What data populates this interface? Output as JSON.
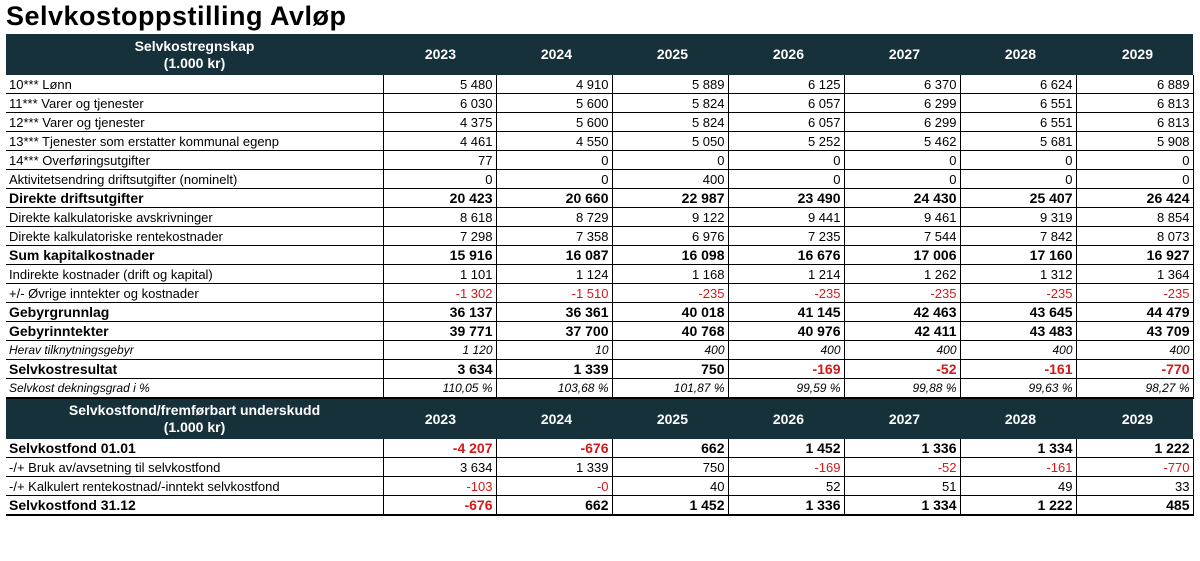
{
  "title": "Selvkostoppstilling Avløp",
  "years": [
    "2023",
    "2024",
    "2025",
    "2026",
    "2027",
    "2028",
    "2029"
  ],
  "section1": {
    "header_line1": "Selvkostregnskap",
    "header_line2": "(1.000 kr)",
    "rows": [
      {
        "label": "10*** Lønn",
        "style": "ind1",
        "values": [
          "5 480",
          "4 910",
          "5 889",
          "6 125",
          "6 370",
          "6 624",
          "6 889"
        ]
      },
      {
        "label": "11*** Varer og tjenester",
        "style": "ind1",
        "values": [
          "6 030",
          "5 600",
          "5 824",
          "6 057",
          "6 299",
          "6 551",
          "6 813"
        ]
      },
      {
        "label": "12*** Varer og tjenester",
        "style": "ind1",
        "values": [
          "4 375",
          "5 600",
          "5 824",
          "6 057",
          "6 299",
          "6 551",
          "6 813"
        ]
      },
      {
        "label": "13*** Tjenester som erstatter kommunal egenp",
        "style": "ind1",
        "values": [
          "4 461",
          "4 550",
          "5 050",
          "5 252",
          "5 462",
          "5 681",
          "5 908"
        ]
      },
      {
        "label": "14*** Overføringsutgifter",
        "style": "ind1",
        "values": [
          "77",
          "0",
          "0",
          "0",
          "0",
          "0",
          "0"
        ]
      },
      {
        "label": "Aktivitetsendring driftsutgifter (nominelt)",
        "style": "ind1",
        "values": [
          "0",
          "0",
          "400",
          "0",
          "0",
          "0",
          "0"
        ]
      },
      {
        "label": "Direkte driftsutgifter",
        "style": "bold",
        "values": [
          "20 423",
          "20 660",
          "22 987",
          "23 490",
          "24 430",
          "25 407",
          "26 424"
        ]
      },
      {
        "label": "Direkte kalkulatoriske avskrivninger",
        "style": "ind1",
        "values": [
          "8 618",
          "8 729",
          "9 122",
          "9 441",
          "9 461",
          "9 319",
          "8 854"
        ]
      },
      {
        "label": "Direkte kalkulatoriske rentekostnader",
        "style": "ind1",
        "values": [
          "7 298",
          "7 358",
          "6 976",
          "7 235",
          "7 544",
          "7 842",
          "8 073"
        ]
      },
      {
        "label": "Sum kapitalkostnader",
        "style": "bold2",
        "values": [
          "15 916",
          "16 087",
          "16 098",
          "16 676",
          "17 006",
          "17 160",
          "16 927"
        ]
      },
      {
        "label": "Indirekte kostnader (drift og kapital)",
        "style": "ind1",
        "values": [
          "1 101",
          "1 124",
          "1 168",
          "1 214",
          "1 262",
          "1 312",
          "1 364"
        ]
      },
      {
        "label": "+/- Øvrige inntekter og kostnader",
        "style": "ind1",
        "values": [
          "-1 302",
          "-1 510",
          "-235",
          "-235",
          "-235",
          "-235",
          "-235"
        ],
        "neg": [
          true,
          true,
          true,
          true,
          true,
          true,
          true
        ]
      },
      {
        "label": "Gebyrgrunnlag",
        "style": "bold",
        "values": [
          "36 137",
          "36 361",
          "40 018",
          "41 145",
          "42 463",
          "43 645",
          "44 479"
        ]
      },
      {
        "label": "Gebyrinntekter",
        "style": "bold",
        "values": [
          "39 771",
          "37 700",
          "40 768",
          "40 976",
          "42 411",
          "43 483",
          "43 709"
        ]
      },
      {
        "label": "Herav tilknytningsgebyr",
        "style": "italic",
        "values": [
          "1 120",
          "10",
          "400",
          "400",
          "400",
          "400",
          "400"
        ]
      },
      {
        "label": "Selvkostresultat",
        "style": "bold",
        "values": [
          "3 634",
          "1 339",
          "750",
          "-169",
          "-52",
          "-161",
          "-770"
        ],
        "neg": [
          false,
          false,
          false,
          true,
          true,
          true,
          true
        ]
      },
      {
        "label": "Selvkost dekningsgrad i %",
        "style": "italicsmall",
        "values": [
          "110,05 %",
          "103,68 %",
          "101,87 %",
          "99,59 %",
          "99,88 %",
          "99,63 %",
          "98,27 %"
        ]
      }
    ]
  },
  "section2": {
    "header_line1": "Selvkostfond/fremførbart underskudd",
    "header_line2": "(1.000 kr)",
    "rows": [
      {
        "label": "Selvkostfond 01.01",
        "style": "bold",
        "values": [
          "-4 207",
          "-676",
          "662",
          "1 452",
          "1 336",
          "1 334",
          "1 222"
        ],
        "neg": [
          true,
          true,
          false,
          false,
          false,
          false,
          false
        ]
      },
      {
        "label": "-/+ Bruk av/avsetning til selvkostfond",
        "style": "plain",
        "values": [
          "3 634",
          "1 339",
          "750",
          "-169",
          "-52",
          "-161",
          "-770"
        ],
        "neg": [
          false,
          false,
          false,
          true,
          true,
          true,
          true
        ]
      },
      {
        "label": "-/+ Kalkulert rentekostnad/-inntekt selvkostfond",
        "style": "plain",
        "values": [
          "-103",
          "-0",
          "40",
          "52",
          "51",
          "49",
          "33"
        ],
        "neg": [
          true,
          true,
          false,
          false,
          false,
          false,
          false
        ]
      },
      {
        "label": "Selvkostfond 31.12",
        "style": "bold",
        "values": [
          "-676",
          "662",
          "1 452",
          "1 336",
          "1 334",
          "1 222",
          "485"
        ],
        "neg": [
          true,
          false,
          false,
          false,
          false,
          false,
          false
        ]
      }
    ]
  }
}
